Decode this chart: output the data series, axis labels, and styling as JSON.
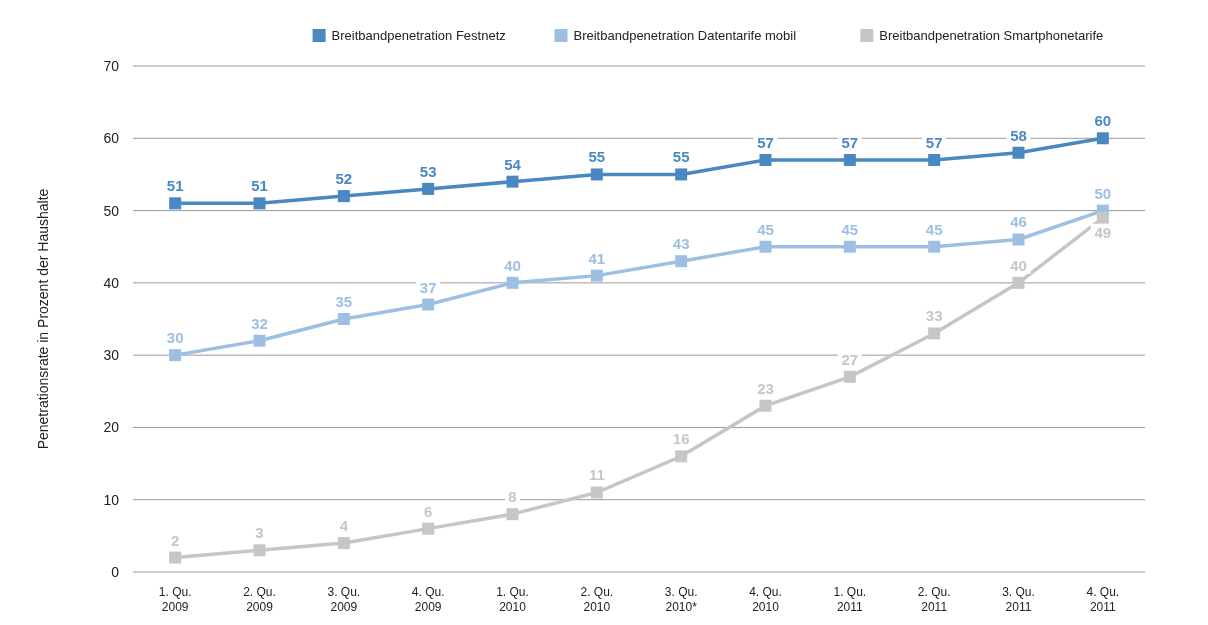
{
  "chart_data": {
    "type": "line",
    "ylabel": "Penetrationsrate in Prozent der Haushalte",
    "categories": [
      "1. Qu.\n2009",
      "2. Qu.\n2009",
      "3. Qu.\n2009",
      "4. Qu.\n2009",
      "1. Qu.\n2010",
      "2. Qu.\n2010",
      "3. Qu.\n2010*",
      "4. Qu.\n2010",
      "1. Qu.\n2011",
      "2. Qu.\n2011",
      "3. Qu.\n2011",
      "4. Qu.\n2011"
    ],
    "series": [
      {
        "name": "Breitbandpenetration Festnetz",
        "color": "#4a88c2",
        "values": [
          51,
          51,
          52,
          53,
          54,
          55,
          55,
          57,
          57,
          57,
          58,
          60
        ]
      },
      {
        "name": "Breitbandpenetration Datentarife mobil",
        "color": "#9dc0e2",
        "values": [
          30,
          32,
          35,
          37,
          40,
          41,
          43,
          45,
          45,
          45,
          46,
          50
        ]
      },
      {
        "name": "Breitbandpenetration Smartphonetarife",
        "color": "#c6c6c6",
        "values": [
          2,
          3,
          4,
          6,
          8,
          11,
          16,
          23,
          27,
          33,
          40,
          49
        ]
      }
    ],
    "ylim": [
      0,
      70
    ],
    "yticks": [
      0,
      10,
      20,
      30,
      40,
      50,
      60,
      70
    ],
    "grid": "y",
    "legend": "top right",
    "marker": "square",
    "line_style": "solid",
    "data_labels": true
  }
}
